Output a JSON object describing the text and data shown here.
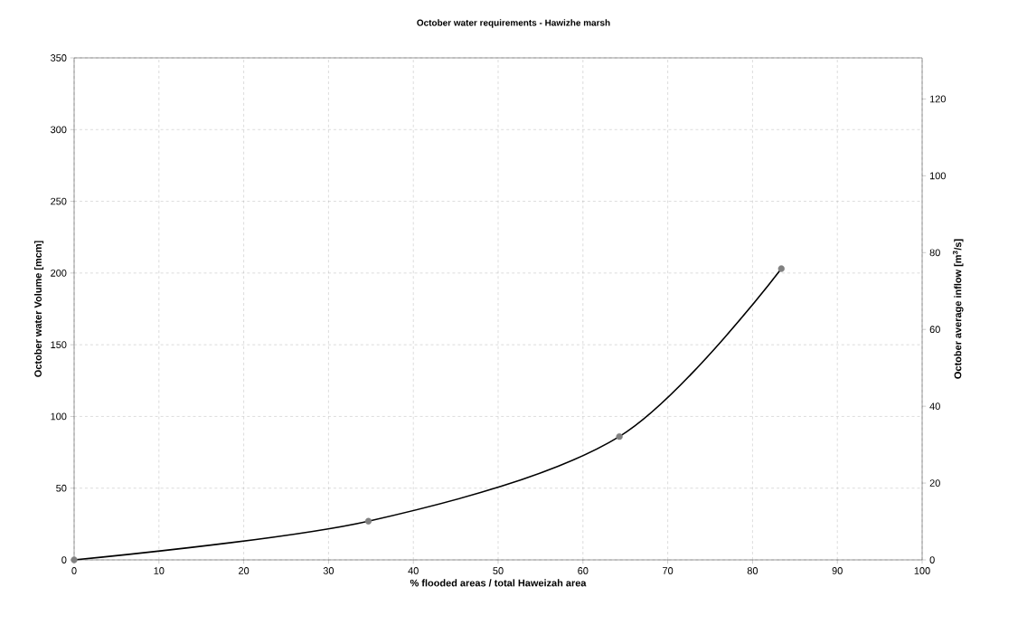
{
  "chart_data": {
    "type": "line",
    "title": "October water requirements - Hawizhe marsh",
    "xlabel": "% flooded areas / total Haweizah area",
    "ylabel": "October water Volume [mcm]",
    "y2label": "October average inflow [m$^{3}$/s]",
    "xlim": [
      0,
      100
    ],
    "xticks": [
      0,
      10,
      20,
      30,
      40,
      50,
      60,
      70,
      80,
      90,
      100
    ],
    "ylim": [
      0,
      350
    ],
    "yticks": [
      0,
      50,
      100,
      150,
      200,
      250,
      300,
      350
    ],
    "y2lim": [
      0,
      130.7
    ],
    "y2ticks": [
      0,
      20,
      40,
      60,
      80,
      100,
      120
    ],
    "grid": true,
    "series": [
      {
        "color": "#000000",
        "marker": "none",
        "x": [
          0,
          34.7,
          64.3,
          83.4
        ],
        "values": [
          0,
          27,
          86,
          203
        ]
      },
      {
        "type": "scatter",
        "color": "#808080",
        "marker": "circle",
        "x": [
          0,
          34.7,
          64.3,
          83.4
        ],
        "values": [
          0,
          27,
          86,
          203
        ]
      }
    ]
  }
}
